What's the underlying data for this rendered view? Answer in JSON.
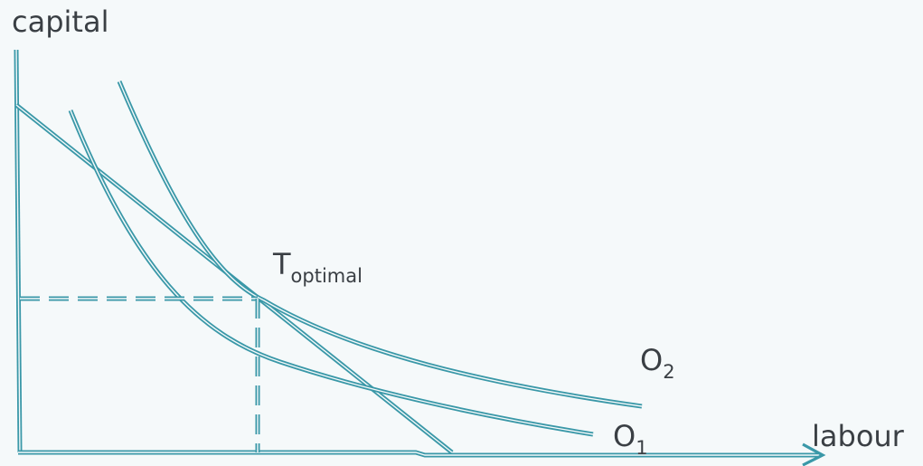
{
  "colors": {
    "background": "#f5f9fa",
    "line": "#3a98a8",
    "text": "#3a3f44"
  },
  "axes": {
    "y_label": "capital",
    "x_label": "labour",
    "x_arrow_icon": "arrow-right-icon"
  },
  "point": {
    "main": "T",
    "sub": "optimal"
  },
  "curves": [
    {
      "main": "O",
      "sub": "2"
    },
    {
      "main": "O",
      "sub": "1"
    }
  ]
}
